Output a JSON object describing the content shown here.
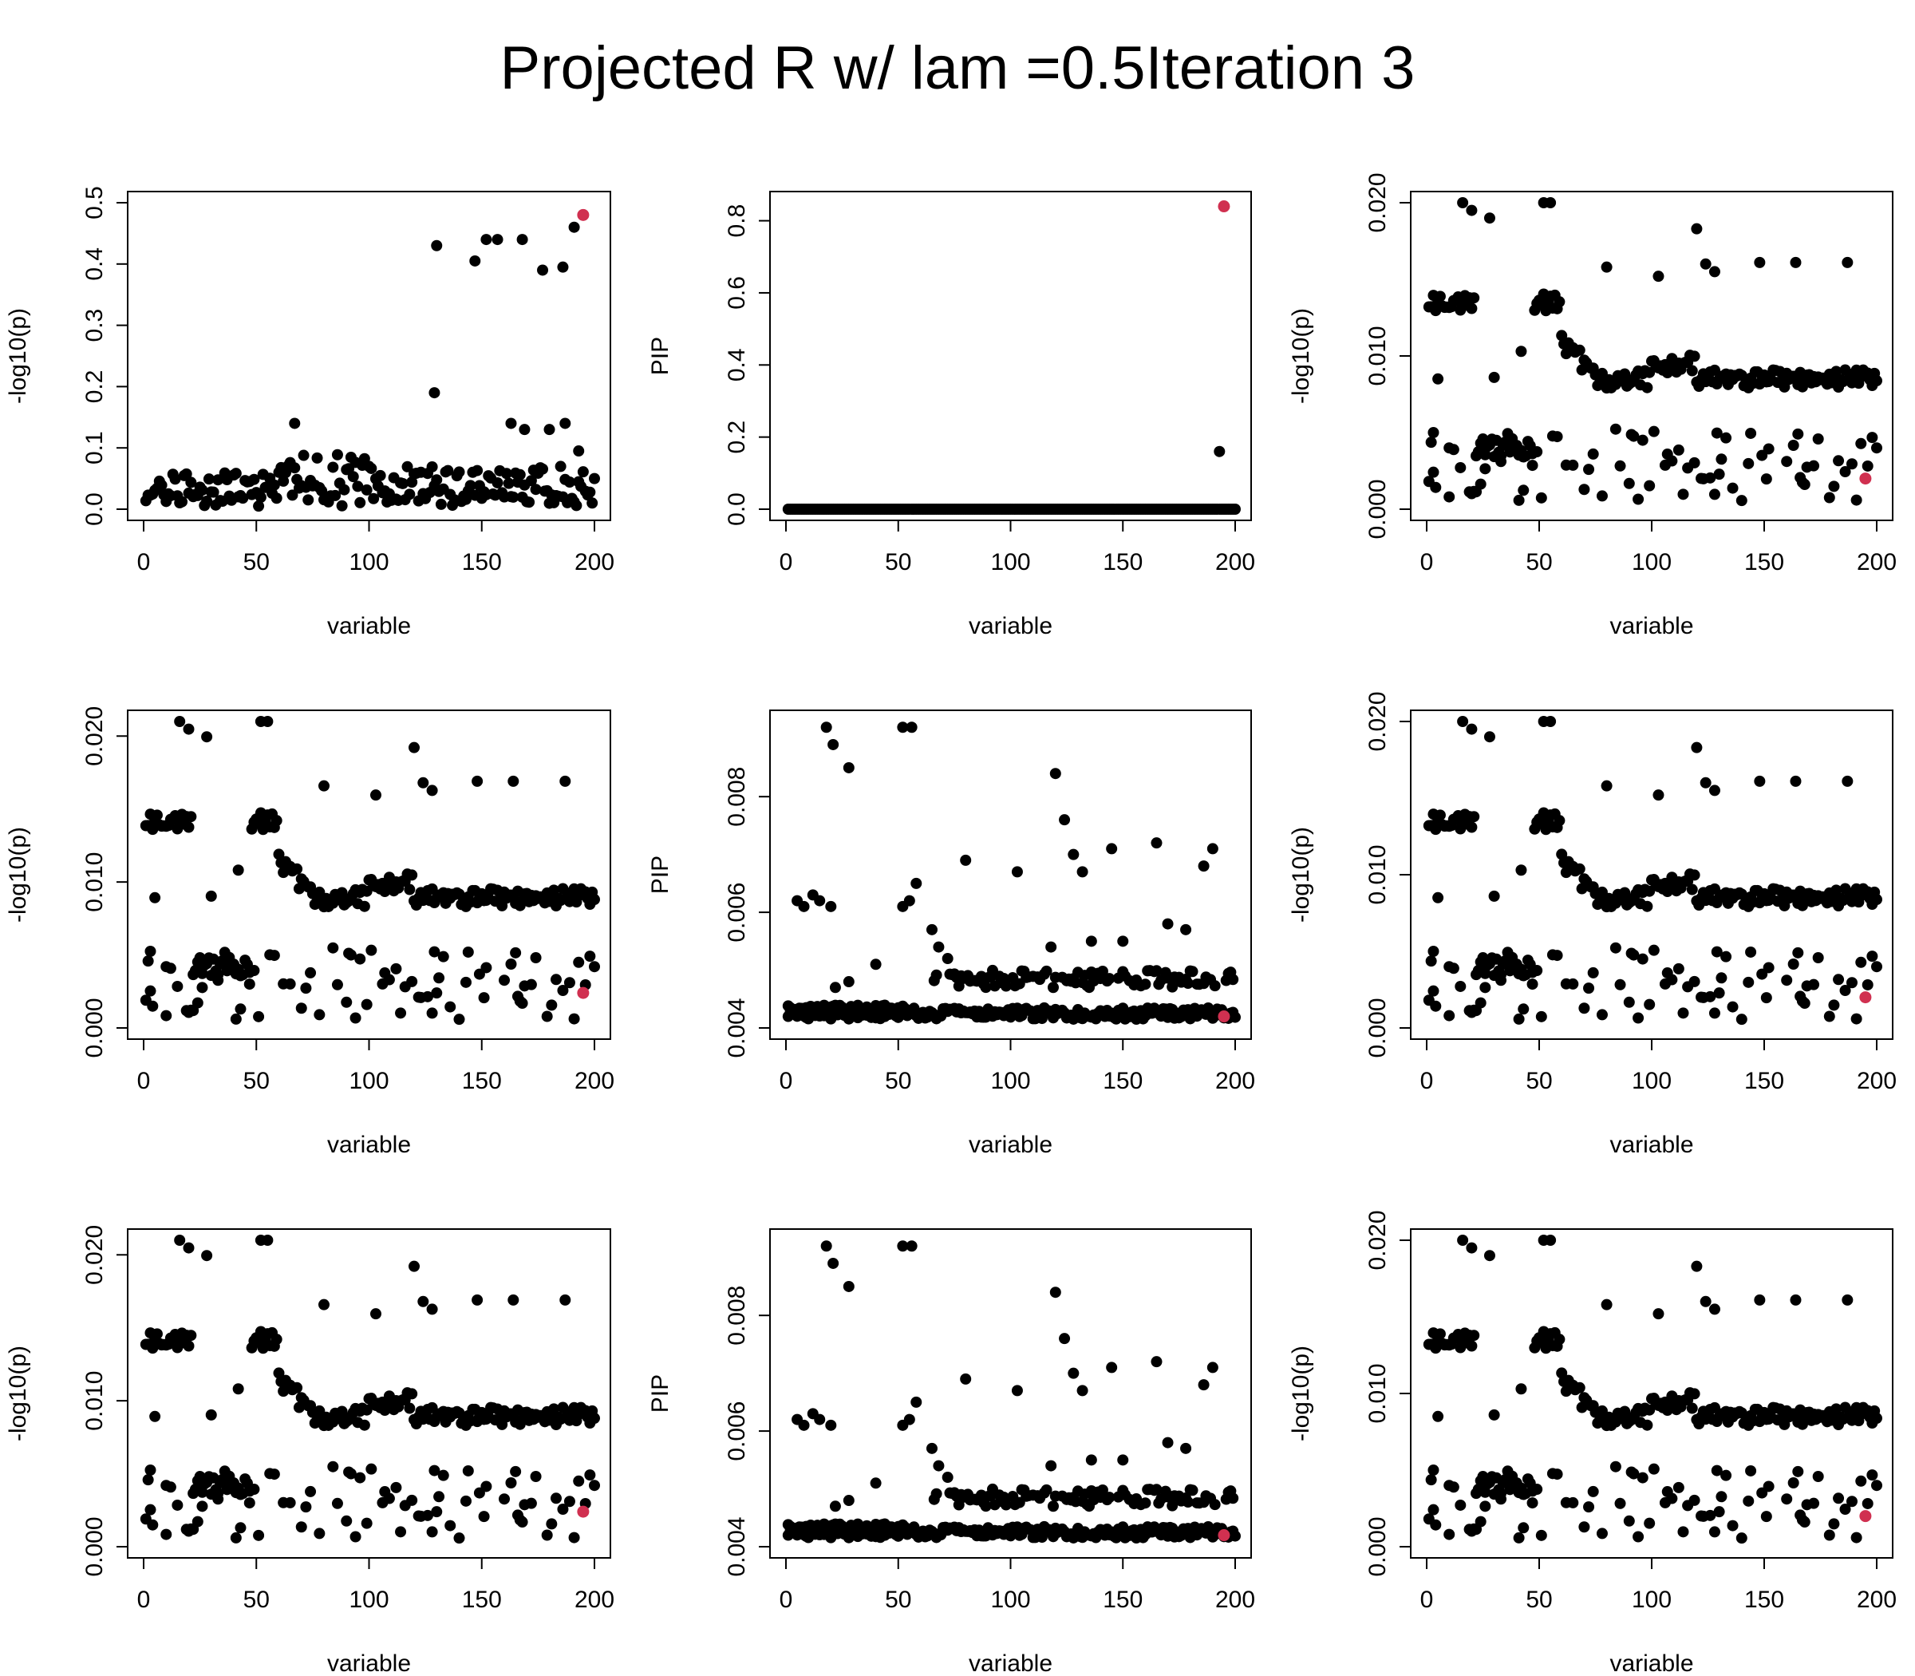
{
  "figure": {
    "title": "Projected R w/ lam =0.5Iteration 3"
  },
  "chart_data": [
    {
      "type": "scatter",
      "panel": "row1-col1",
      "xlabel": "variable",
      "ylabel": "-log10(p)",
      "xlim": [
        0,
        200
      ],
      "ylim": [
        0,
        0.5
      ],
      "x_ticks": [
        "0",
        "50",
        "100",
        "150",
        "200"
      ],
      "y_ticks": [
        "0.0",
        "0.1",
        "0.2",
        "0.3",
        "0.4",
        "0.5"
      ],
      "series_kind": "pvalue",
      "point_color": "#000000",
      "highlight_color": "#d03050",
      "highlight": {
        "x": 195,
        "y": 0.48
      },
      "outliers": [
        [
          130,
          0.43
        ],
        [
          147,
          0.405
        ],
        [
          152,
          0.44
        ],
        [
          157,
          0.44
        ],
        [
          168,
          0.44
        ],
        [
          177,
          0.39
        ],
        [
          186,
          0.395
        ],
        [
          191,
          0.46
        ],
        [
          129,
          0.19
        ],
        [
          67,
          0.14
        ],
        [
          163,
          0.14
        ],
        [
          169,
          0.13
        ],
        [
          180,
          0.13
        ],
        [
          187,
          0.14
        ],
        [
          193,
          0.095
        ]
      ]
    },
    {
      "type": "scatter",
      "panel": "row1-col2",
      "xlabel": "variable",
      "ylabel": "PIP",
      "xlim": [
        0,
        200
      ],
      "ylim": [
        0,
        0.85
      ],
      "x_ticks": [
        "0",
        "50",
        "100",
        "150",
        "200"
      ],
      "y_ticks": [
        "0.0",
        "0.2",
        "0.4",
        "0.6",
        "0.8"
      ],
      "series_kind": "pip_flat",
      "point_color": "#000000",
      "highlight_color": "#d03050",
      "highlight": {
        "x": 195,
        "y": 0.84
      },
      "outliers": [
        [
          193,
          0.16
        ]
      ]
    },
    {
      "type": "scatter",
      "panel": "row1-col3",
      "xlabel": "variable",
      "ylabel": "-log10(p)",
      "xlim": [
        0,
        200
      ],
      "ylim": [
        0,
        0.02
      ],
      "x_ticks": [
        "0",
        "50",
        "100",
        "150",
        "200"
      ],
      "y_ticks": [
        "0.000",
        "0.010",
        "0.020"
      ],
      "series_kind": "residual",
      "point_color": "#000000",
      "highlight_color": "#d03050",
      "highlight": {
        "x": 195,
        "y": 0.002
      }
    },
    {
      "type": "scatter",
      "panel": "row2-col1",
      "xlabel": "variable",
      "ylabel": "-log10(p)",
      "xlim": [
        0,
        200
      ],
      "ylim": [
        0,
        0.021
      ],
      "x_ticks": [
        "0",
        "50",
        "100",
        "150",
        "200"
      ],
      "y_ticks": [
        "0.000",
        "0.010",
        "0.020"
      ],
      "series_kind": "residual",
      "point_color": "#000000",
      "highlight_color": "#d03050",
      "highlight": {
        "x": 195,
        "y": 0.0024
      }
    },
    {
      "type": "scatter",
      "panel": "row2-col2",
      "xlabel": "variable",
      "ylabel": "PIP",
      "xlim": [
        0,
        200
      ],
      "ylim": [
        0.004,
        0.0093
      ],
      "x_ticks": [
        "0",
        "50",
        "100",
        "150",
        "200"
      ],
      "y_ticks": [
        "0.004",
        "0.006",
        "0.008"
      ],
      "series_kind": "pip_small",
      "point_color": "#000000",
      "highlight_color": "#d03050",
      "highlight": {
        "x": 195,
        "y": 0.0042
      }
    },
    {
      "type": "scatter",
      "panel": "row2-col3",
      "xlabel": "variable",
      "ylabel": "-log10(p)",
      "xlim": [
        0,
        200
      ],
      "ylim": [
        0,
        0.02
      ],
      "x_ticks": [
        "0",
        "50",
        "100",
        "150",
        "200"
      ],
      "y_ticks": [
        "0.000",
        "0.010",
        "0.020"
      ],
      "series_kind": "residual",
      "point_color": "#000000",
      "highlight_color": "#d03050",
      "highlight": {
        "x": 195,
        "y": 0.002
      }
    },
    {
      "type": "scatter",
      "panel": "row3-col1",
      "xlabel": "variable",
      "ylabel": "-log10(p)",
      "xlim": [
        0,
        200
      ],
      "ylim": [
        0,
        0.021
      ],
      "x_ticks": [
        "0",
        "50",
        "100",
        "150",
        "200"
      ],
      "y_ticks": [
        "0.000",
        "0.010",
        "0.020"
      ],
      "series_kind": "residual",
      "point_color": "#000000",
      "highlight_color": "#d03050",
      "highlight": {
        "x": 195,
        "y": 0.0024
      }
    },
    {
      "type": "scatter",
      "panel": "row3-col2",
      "xlabel": "variable",
      "ylabel": "PIP",
      "xlim": [
        0,
        200
      ],
      "ylim": [
        0.004,
        0.0093
      ],
      "x_ticks": [
        "0",
        "50",
        "100",
        "150",
        "200"
      ],
      "y_ticks": [
        "0.004",
        "0.006",
        "0.008"
      ],
      "series_kind": "pip_small",
      "point_color": "#000000",
      "highlight_color": "#d03050",
      "highlight": {
        "x": 195,
        "y": 0.0042
      }
    },
    {
      "type": "scatter",
      "panel": "row3-col3",
      "xlabel": "variable",
      "ylabel": "-log10(p)",
      "xlim": [
        0,
        200
      ],
      "ylim": [
        0,
        0.02
      ],
      "x_ticks": [
        "0",
        "50",
        "100",
        "150",
        "200"
      ],
      "y_ticks": [
        "0.000",
        "0.010",
        "0.020"
      ],
      "series_kind": "residual",
      "point_color": "#000000",
      "highlight_color": "#d03050",
      "highlight": {
        "x": 195,
        "y": 0.002
      }
    }
  ]
}
